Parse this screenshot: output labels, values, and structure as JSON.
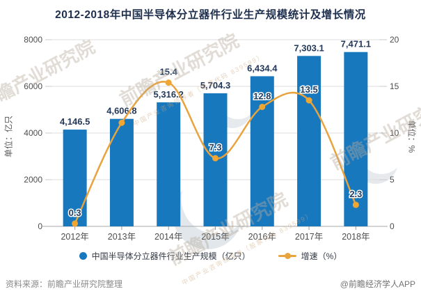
{
  "title": "2012-2018年中国半导体分立器件行业生产规模统计及增长情况",
  "chart_data": {
    "type": "bar+line",
    "categories": [
      "2012年",
      "2013年",
      "2014年",
      "2015年",
      "2016年",
      "2017年",
      "2018年"
    ],
    "series": [
      {
        "name": "中国半导体分立器件行业生产规模（亿只）",
        "type": "bar",
        "axis": "left",
        "color": "#1878be",
        "values": [
          4146.5,
          4606.8,
          5316.2,
          5704.3,
          6434.4,
          7303.1,
          7471.1
        ],
        "labels": [
          "4,146.5",
          "4,606.8",
          "5,316.2",
          "5,704.3",
          "6,434.4",
          "7,303.1",
          "7,471.1"
        ]
      },
      {
        "name": "增速（%）",
        "type": "line",
        "axis": "right",
        "color": "#e8a33d",
        "marker_color": "#efa632",
        "values": [
          0.3,
          11.1,
          15.4,
          7.3,
          12.8,
          13.5,
          2.3
        ],
        "labels": [
          "0.3",
          "",
          "15.4",
          "7.3",
          "12.8",
          "13.5",
          "2.3"
        ]
      }
    ],
    "left_axis": {
      "name": "单位：亿只",
      "min": 0,
      "max": 8000,
      "ticks": [
        "0",
        "2000",
        "4000",
        "6000",
        "8000"
      ]
    },
    "right_axis": {
      "name": "单位：%",
      "min": 0,
      "max": 20,
      "ticks": [
        "0",
        "5",
        "10",
        "15",
        "20"
      ]
    },
    "grid": true,
    "legend_position": "bottom"
  },
  "footer": {
    "source": "资料来源：前瞻产业研究院整理",
    "credit": "@前瞻经济学人APP"
  },
  "watermark": {
    "brand": "前瞻产业研究院",
    "subtext": "中国产业咨询领导者（股票代码 839599）"
  },
  "colors": {
    "bar": "#1878be",
    "line": "#e8a33d",
    "title": "#1e2f4d",
    "bar_label": "#24395a",
    "line_label": "#1f3a5f",
    "axis_text": "#4d4d4d",
    "grid": "#dcdcdc",
    "axis_line": "#a8a8a8"
  }
}
